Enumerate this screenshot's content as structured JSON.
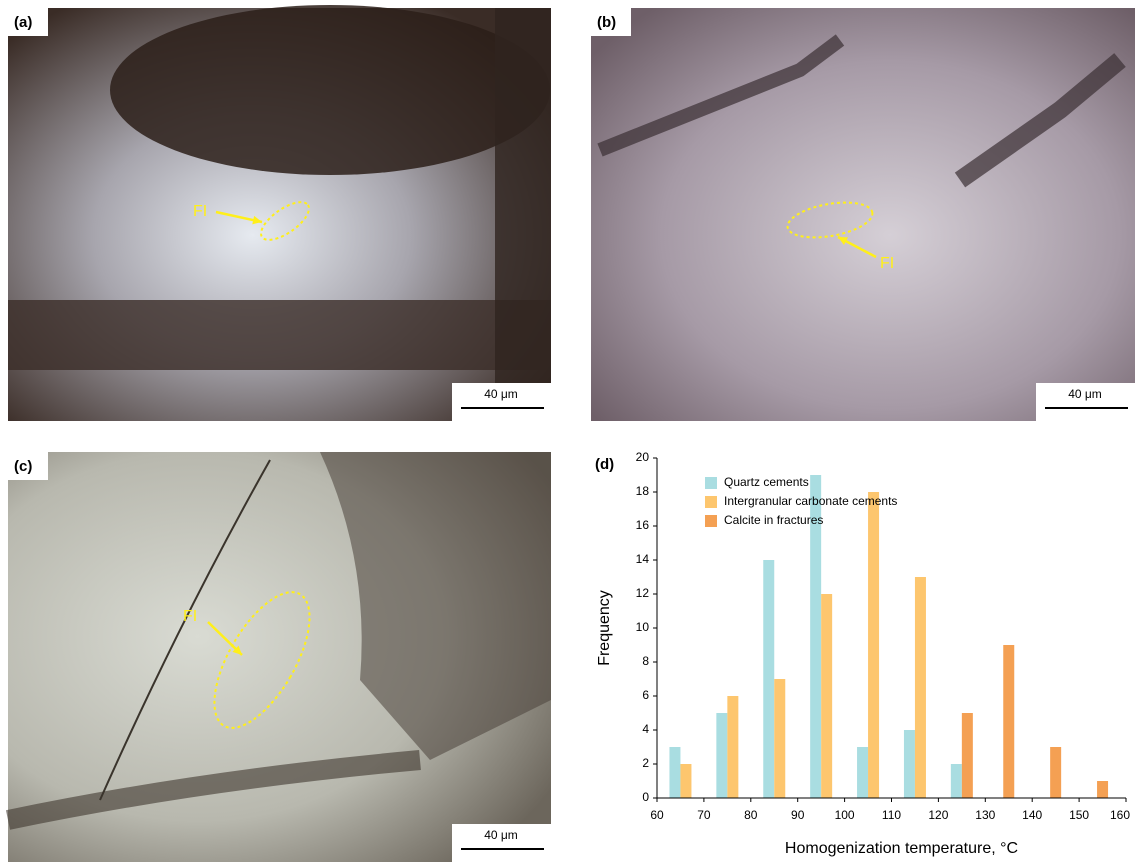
{
  "panels": [
    {
      "label": "(a)",
      "annotation": "FI",
      "scale": "40 μm"
    },
    {
      "label": "(b)",
      "annotation": "FI",
      "scale": "40 μm"
    },
    {
      "label": "(c)",
      "annotation": "FI",
      "scale": "40 μm"
    }
  ],
  "chart_data": {
    "type": "bar",
    "panel_label": "(d)",
    "x_label": "Homogenization temperature, °C",
    "y_label": "Frequency",
    "x": [
      65,
      75,
      85,
      95,
      105,
      115,
      125,
      135,
      145,
      155
    ],
    "series": [
      {
        "name": "Quartz cements",
        "color": "#a9dde1",
        "values": [
          3,
          5,
          14,
          19,
          3,
          4,
          2,
          null,
          null,
          null
        ]
      },
      {
        "name": "Intergranular carbonate cements",
        "color": "#fdc66e",
        "values": [
          2,
          6,
          7,
          12,
          18,
          13,
          null,
          null,
          null,
          null
        ]
      },
      {
        "name": "Calcite in fractures",
        "color": "#f4a053",
        "values": [
          null,
          null,
          null,
          null,
          null,
          null,
          5,
          9,
          3,
          1
        ]
      }
    ],
    "xlim": [
      60,
      160
    ],
    "xticks": [
      60,
      70,
      80,
      90,
      100,
      110,
      120,
      130,
      140,
      150,
      160
    ],
    "ylim": [
      0,
      20
    ],
    "yticks": [
      0,
      2,
      4,
      6,
      8,
      10,
      12,
      14,
      16,
      18,
      20
    ]
  }
}
